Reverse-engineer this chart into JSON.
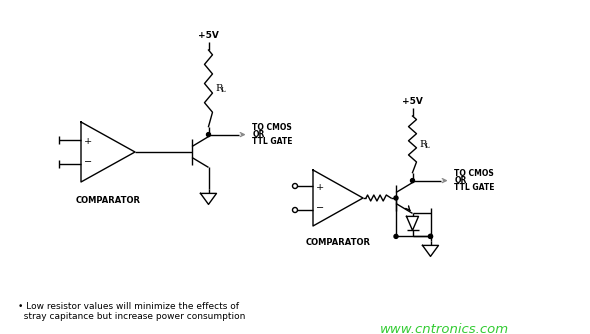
{
  "background_color": "#ffffff",
  "line_color": "#000000",
  "text_color": "#000000",
  "footnote_line1": "• Low resistor values will minimize the effects of",
  "footnote_line2": "  stray capitance but increase power consumption",
  "watermark": "www.cntronics.com",
  "watermark_color": "#33cc33"
}
